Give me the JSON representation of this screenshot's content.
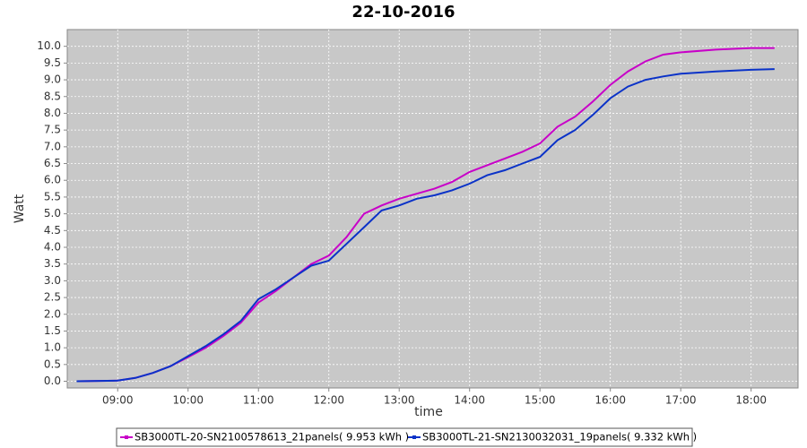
{
  "chart_data": {
    "type": "line",
    "title": "22-10-2016",
    "x_label": "time",
    "y_label": "Watt",
    "x": [
      "08:25",
      "09:00",
      "09:15",
      "09:30",
      "09:45",
      "10:00",
      "10:15",
      "10:30",
      "10:45",
      "11:00",
      "11:15",
      "11:30",
      "11:45",
      "12:00",
      "12:15",
      "12:30",
      "12:45",
      "13:00",
      "13:15",
      "13:30",
      "13:45",
      "14:00",
      "14:15",
      "14:30",
      "14:45",
      "15:00",
      "15:15",
      "15:30",
      "15:45",
      "16:00",
      "16:15",
      "16:30",
      "16:45",
      "17:00",
      "17:30",
      "18:00",
      "18:20"
    ],
    "series": [
      {
        "name": "SB3000TL-20-SN2100578613_21panels( 9.953 kWh )",
        "color": "#c800c8",
        "values": [
          0.0,
          0.02,
          0.1,
          0.25,
          0.45,
          0.72,
          1.0,
          1.35,
          1.75,
          2.35,
          2.7,
          3.1,
          3.5,
          3.75,
          4.3,
          5.0,
          5.25,
          5.45,
          5.6,
          5.75,
          5.95,
          6.25,
          6.45,
          6.65,
          6.85,
          7.1,
          7.6,
          7.9,
          8.35,
          8.85,
          9.25,
          9.55,
          9.75,
          9.82,
          9.9,
          9.95,
          9.95
        ]
      },
      {
        "name": "SB3000TL-21-SN2130032031_19panels( 9.332 kWh )",
        "color": "#0a32c8",
        "values": [
          0.0,
          0.02,
          0.1,
          0.25,
          0.45,
          0.75,
          1.05,
          1.4,
          1.8,
          2.45,
          2.75,
          3.1,
          3.45,
          3.6,
          4.1,
          4.6,
          5.1,
          5.25,
          5.45,
          5.55,
          5.7,
          5.9,
          6.15,
          6.3,
          6.5,
          6.7,
          7.2,
          7.5,
          7.95,
          8.45,
          8.8,
          9.0,
          9.1,
          9.18,
          9.25,
          9.3,
          9.32
        ]
      }
    ],
    "xlim": [
      "08:17",
      "18:40"
    ],
    "xticks": [
      "09:00",
      "10:00",
      "11:00",
      "12:00",
      "13:00",
      "14:00",
      "15:00",
      "16:00",
      "17:00",
      "18:00"
    ],
    "ylim": [
      -0.2,
      10.5
    ],
    "yticks": [
      {
        "value": 0,
        "label": "0.0"
      },
      {
        "value": 0.5,
        "label": "0.5"
      },
      {
        "value": 1,
        "label": "1.0"
      },
      {
        "value": 1.5,
        "label": "1.5"
      },
      {
        "value": 2,
        "label": "2.0"
      },
      {
        "value": 2.5,
        "label": "2.5"
      },
      {
        "value": 3,
        "label": "3.0"
      },
      {
        "value": 3.5,
        "label": "3.5"
      },
      {
        "value": 4,
        "label": "4.0"
      },
      {
        "value": 4.5,
        "label": "4.5"
      },
      {
        "value": 5,
        "label": "5.0"
      },
      {
        "value": 5.5,
        "label": "5.5"
      },
      {
        "value": 6,
        "label": "6.0"
      },
      {
        "value": 6.5,
        "label": "6.5"
      },
      {
        "value": 7,
        "label": "7.0"
      },
      {
        "value": 7.5,
        "label": "7.5"
      },
      {
        "value": 8,
        "label": "8.0"
      },
      {
        "value": 8.5,
        "label": "8.5"
      },
      {
        "value": 9,
        "label": "9.0"
      },
      {
        "value": 9.5,
        "label": "9.5"
      },
      {
        "value": 10,
        "label": "10.0"
      }
    ],
    "grid": true
  }
}
